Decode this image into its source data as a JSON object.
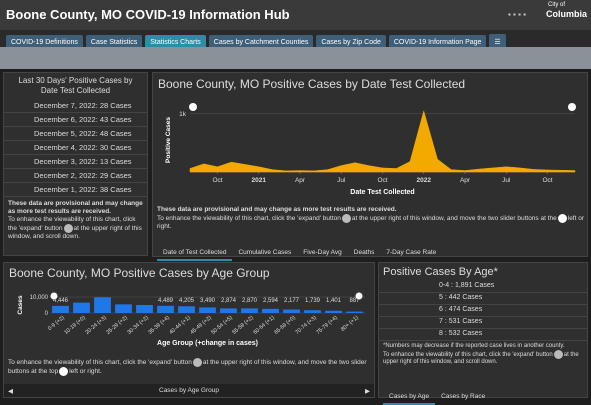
{
  "header": {
    "title": "Boone County, MO COVID-19 Information Hub",
    "logo_top": "City of",
    "logo": "Columbia",
    "tabs": [
      "COVID-19 Definitions",
      "Case Statistics",
      "Statistics Charts",
      "Cases by Catchment Counties",
      "Cases by Zip Code",
      "COVID-19 Information Page"
    ]
  },
  "recent": {
    "title": "Last 30 Days' Positive Cases by Date Test Collected",
    "items": [
      "December 7, 2022: 28 Cases",
      "December 6, 2022: 43 Cases",
      "December 5, 2022: 48 Cases",
      "December 4, 2022: 30 Cases",
      "December 3, 2022: 13 Cases",
      "December 2, 2022: 29 Cases",
      "December 1, 2022: 38 Cases"
    ],
    "note_bold": "These data are provisional and may change as more test results are received.",
    "note_a": "To enhance the viewability of this chart, click the 'expand' button",
    "note_b": "at the upper right of this window, and scroll down."
  },
  "date_chart": {
    "type": "area",
    "title": "Boone County, MO Positive Cases by Date Test Collected",
    "y_label": "Positive Cases",
    "x_label": "Date Test Collected",
    "color": "#f2a900",
    "x": [
      "2020-08",
      "2020-09",
      "2020-10",
      "2020-11",
      "2020-12",
      "2021-01",
      "2021-02",
      "2021-03",
      "2021-04",
      "2021-05",
      "2021-06",
      "2021-07",
      "2021-08",
      "2021-09",
      "2021-10",
      "2021-11",
      "2021-12",
      "2022-01",
      "2022-02",
      "2022-03",
      "2022-04",
      "2022-05",
      "2022-06",
      "2022-07",
      "2022-08",
      "2022-09",
      "2022-10",
      "2022-11",
      "2022-12"
    ],
    "values": [
      60,
      140,
      90,
      170,
      130,
      90,
      40,
      20,
      25,
      20,
      40,
      110,
      160,
      110,
      70,
      60,
      180,
      1050,
      220,
      40,
      25,
      50,
      70,
      90,
      70,
      45,
      35,
      30,
      25
    ],
    "xlim": [
      "2020-08",
      "2022-12"
    ],
    "ylim": [
      0,
      1100
    ],
    "yticks": [
      {
        "value": 1000,
        "label": "1k"
      }
    ],
    "xticks": [
      {
        "value": "2020-10",
        "label": "Oct"
      },
      {
        "value": "2021-01",
        "label": "2021"
      },
      {
        "value": "2021-04",
        "label": "Apr"
      },
      {
        "value": "2021-07",
        "label": "Jul"
      },
      {
        "value": "2021-10",
        "label": "Oct"
      },
      {
        "value": "2022-01",
        "label": "2022"
      },
      {
        "value": "2022-04",
        "label": "Apr"
      },
      {
        "value": "2022-07",
        "label": "Jul"
      },
      {
        "value": "2022-10",
        "label": "Oct"
      }
    ],
    "note_bold": "These data are provisional and may change as more test results are received.",
    "note_a": "To enhance the viewability of this chart, click the 'expand' button",
    "note_b": "at the upper right of this window, and move the two slider buttons at the",
    "note_c": "left or right.",
    "tabs": [
      "Date of Test Collected",
      "Cumulative Cases",
      "Five-Day Avg",
      "Deaths",
      "7-Day Case Rate"
    ]
  },
  "age_chart": {
    "type": "bar",
    "title": "Boone County, MO Positive Cases by Age Group",
    "y_label": "Cases",
    "x_label": "Age Group (+change in cases)",
    "color": "#1f77e8",
    "categories": [
      "0-9 (+2)",
      "10-19 (+0)",
      "20-24 (+3)",
      "25-29 (+2)",
      "30-34 (+2)",
      "35-39 (+4)",
      "40-44 (+1)",
      "45-49 (+2)",
      "50-54 (+5)",
      "55-59 (+2)",
      "60-64 (+1)",
      "65-69 (+0)",
      "70-74 (+3)",
      "75-79 (+4)",
      "80+ (+1)"
    ],
    "values": [
      4446,
      6500,
      9800,
      5400,
      5000,
      4489,
      4205,
      3490,
      2874,
      2870,
      2594,
      2177,
      1739,
      1401,
      887
    ],
    "value_labels": [
      "4,446",
      null,
      null,
      null,
      null,
      "4,489",
      "4,205",
      "3,490",
      "2,874",
      "2,870",
      "2,594",
      "2,177",
      "1,739",
      "1,401",
      "887"
    ],
    "ylim": [
      0,
      10000
    ],
    "yticks": [
      {
        "value": 10000,
        "label": "10,000"
      },
      0
    ],
    "note_a": "To enhance the viewability of this chart, click the 'expand' button",
    "note_b": "at the upper right of this window, and move the two slider buttons at the top",
    "note_c": "left or right.",
    "footer": "Cases by Age Group"
  },
  "age_list": {
    "title": "Positive Cases By Age*",
    "items": [
      "0-4 : 1,891 Cases",
      "5 : 442 Cases",
      "6 : 474 Cases",
      "7 : 531 Cases",
      "8 : 532 Cases"
    ],
    "note": "*Numbers may decrease if the reported case lives in another county.",
    "note_a": "To enhance the viewability of this chart, click the 'expand' button",
    "note_b": "at the upper right of this window, and scroll down.",
    "tabs": [
      "Cases by Age",
      "Cases by Race"
    ]
  }
}
